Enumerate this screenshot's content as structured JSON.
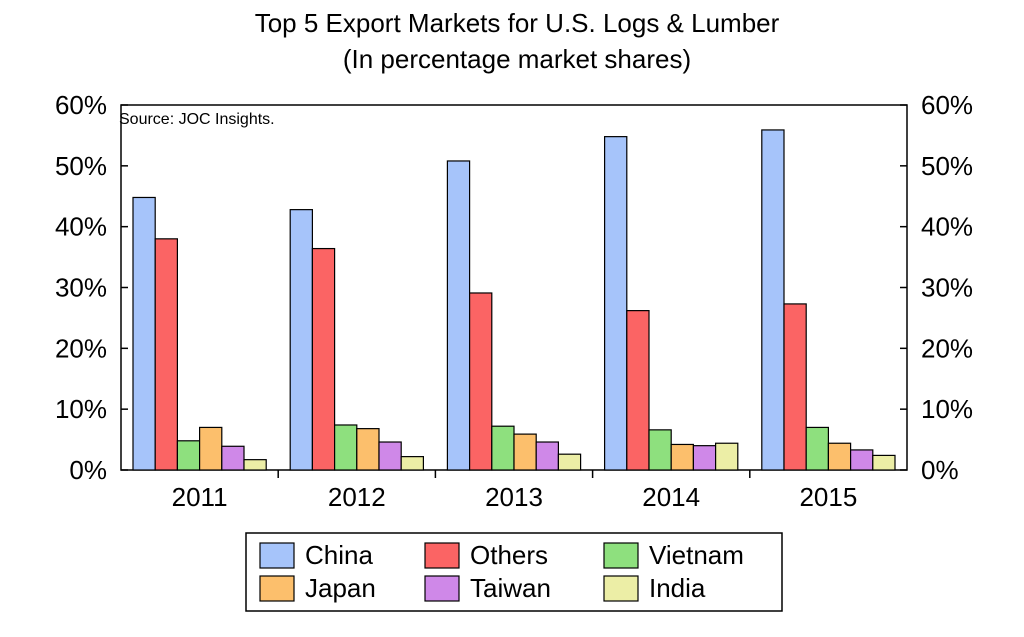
{
  "chart_data": {
    "type": "bar",
    "title": "Top 5 Export Markets for U.S. Logs & Lumber",
    "subtitle": "(In percentage market shares)",
    "source_note": "Source: JOC Insights.",
    "categories": [
      "2011",
      "2012",
      "2013",
      "2014",
      "2015"
    ],
    "ylim": [
      0,
      60
    ],
    "y_ticks": [
      "0%",
      "10%",
      "20%",
      "30%",
      "40%",
      "50%",
      "60%"
    ],
    "y_tick_values": [
      0,
      10,
      20,
      30,
      40,
      50,
      60
    ],
    "grid": false,
    "legend_position": "bottom",
    "series": [
      {
        "name": "China",
        "color": "#a6c4fa",
        "values": [
          44.8,
          42.8,
          50.8,
          54.8,
          55.9
        ]
      },
      {
        "name": "Others",
        "color": "#fb6464",
        "values": [
          38.0,
          36.4,
          29.1,
          26.2,
          27.3
        ]
      },
      {
        "name": "Vietnam",
        "color": "#8ee07e",
        "values": [
          4.8,
          7.4,
          7.2,
          6.6,
          7.0
        ]
      },
      {
        "name": "Japan",
        "color": "#fcbf6c",
        "values": [
          7.0,
          6.8,
          5.9,
          4.2,
          4.4
        ]
      },
      {
        "name": "Taiwan",
        "color": "#cf88e8",
        "values": [
          3.9,
          4.6,
          4.6,
          4.0,
          3.3
        ]
      },
      {
        "name": "India",
        "color": "#eceea6",
        "values": [
          1.7,
          2.2,
          2.6,
          4.4,
          2.4
        ]
      }
    ]
  }
}
